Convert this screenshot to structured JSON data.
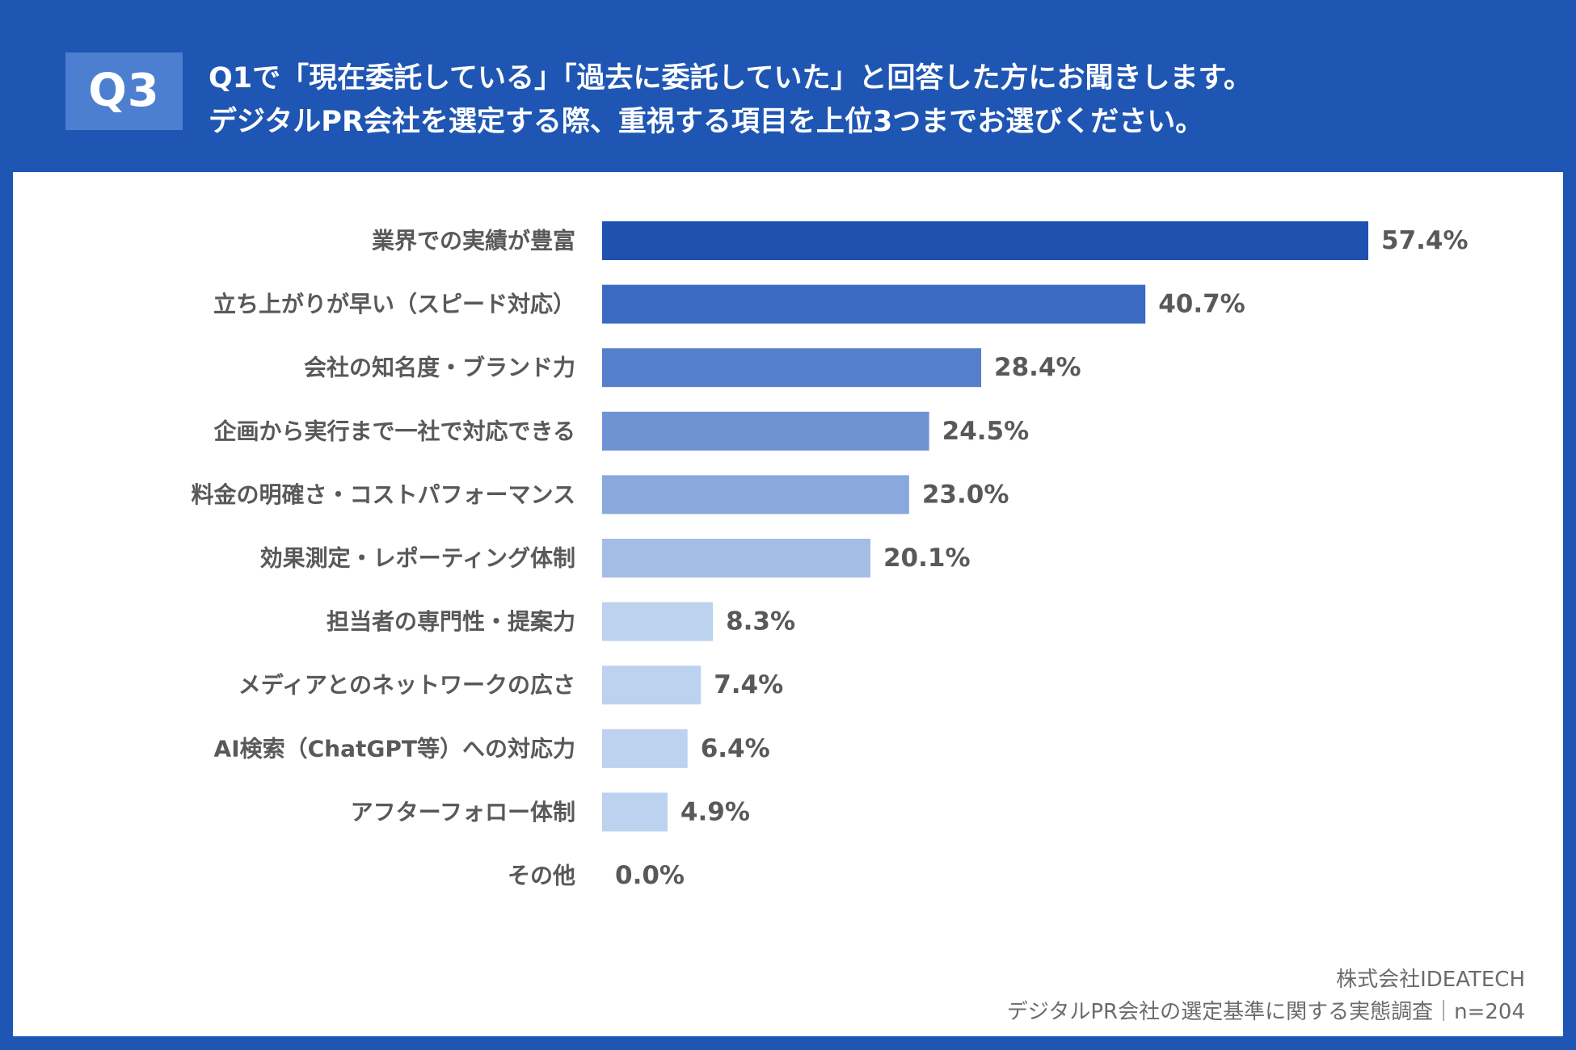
{
  "header": {
    "badge": "Q3",
    "question_line1": "Q1で「現在委託している」「過去に委託していた」と回答した方にお聞きします。",
    "question_line2": "デジタルPR会社を選定する際、重視する項目を上位3つまでお選びください。"
  },
  "chart_data": {
    "type": "bar",
    "orientation": "horizontal",
    "categories": [
      "業界での実績が豊富",
      "立ち上がりが早い（スピード対応）",
      "会社の知名度・ブランド力",
      "企画から実行まで一社で対応できる",
      "料金の明確さ・コストパフォーマンス",
      "効果測定・レポーティング体制",
      "担当者の専門性・提案力",
      "メディアとのネットワークの広さ",
      "AI検索（ChatGPT等）への対応力",
      "アフターフォロー体制",
      "その他"
    ],
    "values": [
      57.4,
      40.7,
      28.4,
      24.5,
      23.0,
      20.1,
      8.3,
      7.4,
      6.4,
      4.9,
      0.0
    ],
    "value_labels": [
      "57.4%",
      "40.7%",
      "28.4%",
      "24.5%",
      "23.0%",
      "20.1%",
      "8.3%",
      "7.4%",
      "6.4%",
      "4.9%",
      "0.0%"
    ],
    "bar_colors": [
      "#1f52b0",
      "#3a6ac2",
      "#557fca",
      "#6e92d2",
      "#89a8db",
      "#a3bde4",
      "#bcd2ee",
      "#bcd2ee",
      "#bcd2ee",
      "#bcd2ee",
      "#bcd2ee"
    ],
    "xlim": [
      0,
      57.4
    ],
    "grid": false,
    "legend": "none"
  },
  "footer": {
    "company": "株式会社IDEATECH",
    "survey": "デジタルPR会社の選定基準に関する実態調査｜n=204"
  },
  "colors": {
    "header_bg": "#1f56b3",
    "badge_bg": "#4d7fd0",
    "text_gray": "#595959"
  }
}
